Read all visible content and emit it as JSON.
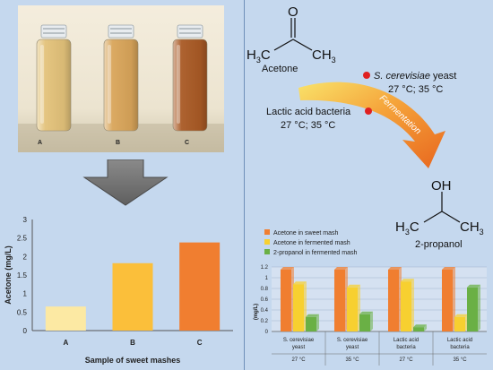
{
  "photo": {
    "bottles": [
      {
        "label": "A",
        "liquid": "#e3c27a"
      },
      {
        "label": "B",
        "liquid": "#d9a55a"
      },
      {
        "label": "C",
        "liquid": "#a95a25"
      }
    ]
  },
  "scheme": {
    "reactant_formula_h3c": "H",
    "reactant_formula_sub": "3",
    "reactant_c": "C",
    "reactant_ch3": "CH",
    "reactant_ch3_sub": "3",
    "reactant_o": "O",
    "reactant_name": "Acetone",
    "yeast_organism": "S. cerevisiae",
    "yeast_word": "yeast",
    "yeast_temps": "27 °C; 35 °C",
    "lab_name": "Lactic acid bacteria",
    "lab_temps": "27 °C; 35 °C",
    "process": "Fermentation",
    "product_oh": "OH",
    "product_h3c": "H",
    "product_h3c_sub": "3",
    "product_c": "C",
    "product_ch3": "CH",
    "product_ch3_sub": "3",
    "product_name": "2-propanol",
    "colors": {
      "arrow_start": "#f7d24a",
      "arrow_end": "#e8661e",
      "dot": "#e02020"
    }
  },
  "chart_data": [
    {
      "type": "bar",
      "categories": [
        "A",
        "B",
        "C"
      ],
      "values": [
        0.65,
        1.82,
        2.38
      ],
      "colors": [
        "#fce9a3",
        "#fbbf3a",
        "#f07e30"
      ],
      "title": "",
      "xlabel": "Sample of sweet mashes",
      "ylabel": "Acetone (mg/L)",
      "ylim": [
        0,
        3
      ],
      "yticks": [
        "0",
        "0.5",
        "1",
        "1.5",
        "2",
        "2.5",
        "3"
      ],
      "grid": false
    },
    {
      "type": "bar",
      "title": "",
      "ylabel": "(mg/L)",
      "ylim": [
        0,
        1.2
      ],
      "yticks": [
        "0",
        "0.2",
        "0.4",
        "0.6",
        "0.8",
        "1",
        "1.2"
      ],
      "categories": [
        {
          "line1": "S. cerevisiae",
          "line2": "yeast",
          "temp": "27 °C"
        },
        {
          "line1": "S. cerevisiae",
          "line2": "yeast",
          "temp": "35 °C"
        },
        {
          "line1": "Lactic acid",
          "line2": "bacteria",
          "temp": "27 °C"
        },
        {
          "line1": "Lactic acid",
          "line2": "bacteria",
          "temp": "35 °C"
        }
      ],
      "series": [
        {
          "name": "Acetone in sweet mash",
          "color": "#f07e30",
          "values": [
            1.15,
            1.15,
            1.15,
            1.15
          ]
        },
        {
          "name": "Acetone in fermented mash",
          "color": "#f7d030",
          "values": [
            0.88,
            0.82,
            0.93,
            0.27
          ]
        },
        {
          "name": "2-propanol in fermented mash",
          "color": "#6ab045",
          "values": [
            0.27,
            0.32,
            0.08,
            0.82
          ]
        }
      ],
      "legend": "top-left",
      "grid": true
    }
  ]
}
